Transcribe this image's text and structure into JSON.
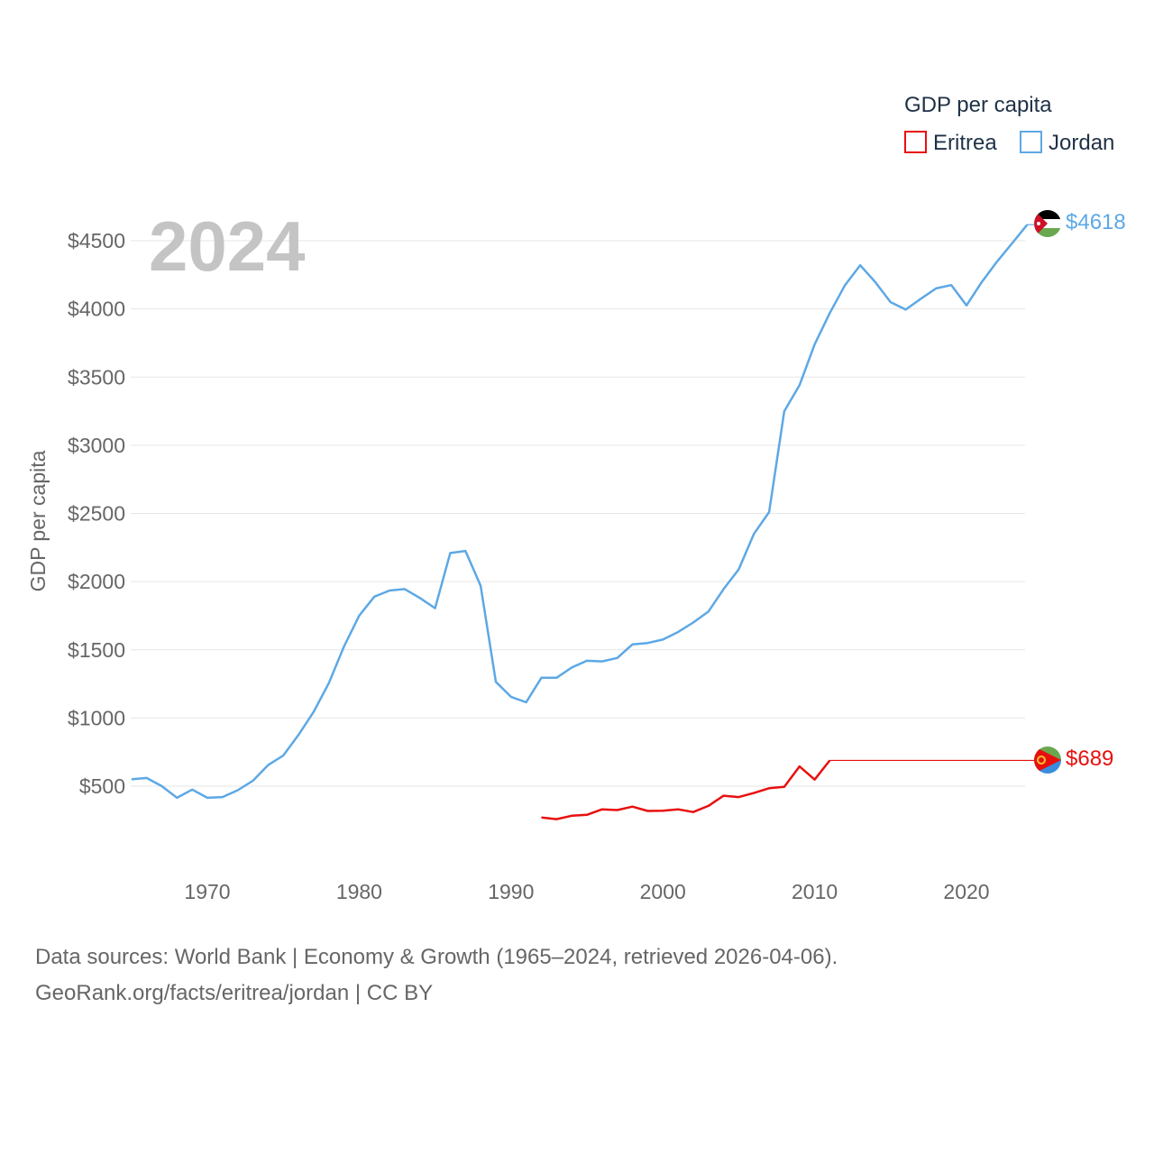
{
  "footer": {
    "line1": "Data sources: World Bank | Economy & Growth (1965–2024, retrieved 2026-04-06).",
    "line2": "GeoRank.org/facts/eritrea/jordan | CC BY"
  },
  "flags": {
    "jordan": "jordan-flag-icon",
    "eritrea": "eritrea-flag-icon"
  },
  "chart_data": {
    "type": "line",
    "title": "GDP per capita",
    "year_label": "2024",
    "xlabel": "",
    "ylabel": "GDP per capita",
    "xlim": [
      1965,
      2024
    ],
    "ylim": [
      0,
      4600
    ],
    "x_ticks": [
      1970,
      1980,
      1990,
      2000,
      2010,
      2020
    ],
    "y_ticks": [
      500,
      1000,
      1500,
      2000,
      2500,
      3000,
      3500,
      4000,
      4500
    ],
    "y_tick_labels": [
      "$500",
      "$1000",
      "$1500",
      "$2000",
      "$2500",
      "$3000",
      "$3500",
      "$4000",
      "$4500"
    ],
    "grid": true,
    "legend_position": "top-right",
    "series": [
      {
        "name": "Eritrea",
        "color": "#e8100f",
        "end_label": "$689",
        "end_value": 689,
        "x": [
          1992,
          1993,
          1994,
          1995,
          1996,
          1997,
          1998,
          1999,
          2000,
          2001,
          2002,
          2003,
          2004,
          2005,
          2006,
          2007,
          2008,
          2009,
          2010,
          2011
        ],
        "values": [
          270,
          258,
          283,
          290,
          330,
          325,
          350,
          318,
          320,
          330,
          310,
          355,
          430,
          420,
          450,
          485,
          495,
          645,
          548,
          689
        ]
      },
      {
        "name": "Jordan",
        "color": "#5da8e5",
        "end_label": "$4618",
        "end_value": 4618,
        "x": [
          1965,
          1966,
          1967,
          1968,
          1969,
          1970,
          1971,
          1972,
          1973,
          1974,
          1975,
          1976,
          1977,
          1978,
          1979,
          1980,
          1981,
          1982,
          1983,
          1984,
          1985,
          1986,
          1987,
          1988,
          1989,
          1990,
          1991,
          1992,
          1993,
          1994,
          1995,
          1996,
          1997,
          1998,
          1999,
          2000,
          2001,
          2002,
          2003,
          2004,
          2005,
          2006,
          2007,
          2008,
          2009,
          2010,
          2011,
          2012,
          2013,
          2014,
          2015,
          2016,
          2017,
          2018,
          2019,
          2020,
          2021,
          2022,
          2023,
          2024
        ],
        "values": [
          550,
          560,
          500,
          415,
          475,
          415,
          420,
          470,
          540,
          655,
          725,
          875,
          1045,
          1255,
          1525,
          1750,
          1890,
          1935,
          1945,
          1880,
          1805,
          2210,
          2225,
          1970,
          1265,
          1155,
          1115,
          1295,
          1295,
          1370,
          1420,
          1415,
          1440,
          1540,
          1550,
          1575,
          1630,
          1700,
          1780,
          1945,
          2090,
          2350,
          2510,
          3250,
          3440,
          3740,
          3970,
          4175,
          4320,
          4195,
          4050,
          3995,
          4075,
          4150,
          4175,
          4025,
          4195,
          4345,
          4480,
          4618
        ]
      }
    ]
  }
}
